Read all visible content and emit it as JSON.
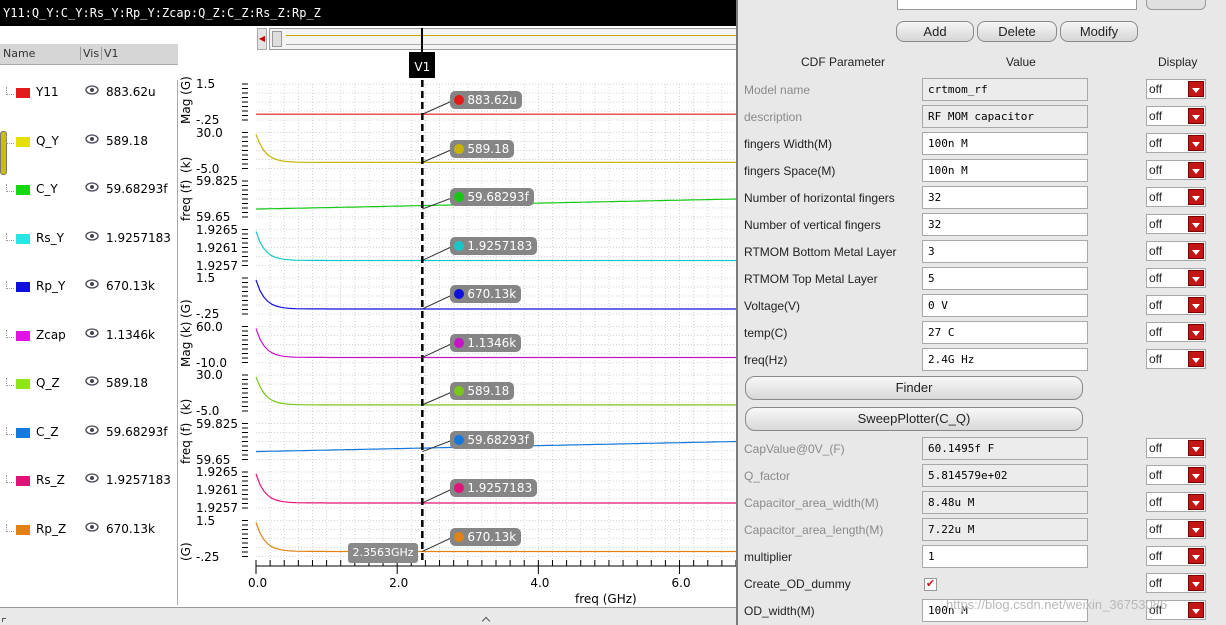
{
  "window": {
    "title": "Y11:Q_Y:C_Y:Rs_Y:Rp_Y:Zcap:Q_Z:C_Z:Rs_Z:Rp_Z"
  },
  "legend": {
    "headers": {
      "name": "Name",
      "vis": "Vis",
      "col": "V1"
    },
    "items": [
      {
        "name": "Y11",
        "value": "883.62u",
        "color": "#e41a1a"
      },
      {
        "name": "Q_Y",
        "value": "589.18",
        "color": "#e6e000"
      },
      {
        "name": "C_Y",
        "value": "59.68293f",
        "color": "#14d814"
      },
      {
        "name": "Rs_Y",
        "value": "1.9257183",
        "color": "#28e6e6"
      },
      {
        "name": "Rp_Y",
        "value": "670.13k",
        "color": "#1010dc"
      },
      {
        "name": "Zcap",
        "value": "1.1346k",
        "color": "#e014e0"
      },
      {
        "name": "Q_Z",
        "value": "589.18",
        "color": "#8ee61a"
      },
      {
        "name": "C_Z",
        "value": "59.68293f",
        "color": "#1478dc"
      },
      {
        "name": "Rs_Z",
        "value": "1.9257183",
        "color": "#e01478"
      },
      {
        "name": "Rp_Z",
        "value": "670.13k",
        "color": "#e08214"
      }
    ]
  },
  "chart_data": {
    "type": "line",
    "xlabel": "freq (GHz)",
    "x_ticks": [
      "0.0",
      "2.0",
      "4.0",
      "6.0"
    ],
    "xlim": [
      0,
      6.8
    ],
    "marker": {
      "name": "V1",
      "x": 2.3563,
      "x_readout": "2.3563GHz"
    },
    "strips": [
      {
        "name": "Y11",
        "ylabel": "Mag (G)",
        "ticks": [
          "1.5",
          "-.25"
        ],
        "readout": "883.62u",
        "color": "#e41a1a",
        "shape": "flat",
        "level": 0.84
      },
      {
        "name": "Q_Y",
        "ylabel": "(k)",
        "ticks": [
          "30.0",
          "-5.0"
        ],
        "readout": "589.18",
        "color": "#c8b400",
        "shape": "decay",
        "level": 0.83
      },
      {
        "name": "C_Y",
        "ylabel": "freq (f)",
        "ticks": [
          "59.825",
          "59.65"
        ],
        "readout": "59.68293f",
        "color": "#14c814",
        "shape": "rise",
        "level": 0.78
      },
      {
        "name": "Rs_Y",
        "ylabel": "",
        "ticks": [
          "1.9265",
          "1.9261",
          "1.9257"
        ],
        "readout": "1.9257183",
        "color": "#18c8c8",
        "shape": "decay",
        "level": 0.86
      },
      {
        "name": "Rp_Y",
        "ylabel": "(G)",
        "ticks": [
          "1.5",
          "-.25"
        ],
        "readout": "670.13k",
        "color": "#1010dc",
        "shape": "decay",
        "level": 0.86
      },
      {
        "name": "Zcap",
        "ylabel": "Mag (k)",
        "ticks": [
          "60.0",
          "-10.0"
        ],
        "readout": "1.1346k",
        "color": "#c814c8",
        "shape": "decay",
        "level": 0.86
      },
      {
        "name": "Q_Z",
        "ylabel": "(k)",
        "ticks": [
          "30.0",
          "-5.0"
        ],
        "readout": "589.18",
        "color": "#7ac81a",
        "shape": "decay",
        "level": 0.83
      },
      {
        "name": "C_Z",
        "ylabel": "freq (f)",
        "ticks": [
          "59.825",
          "59.65"
        ],
        "readout": "59.68293f",
        "color": "#1478dc",
        "shape": "rise",
        "level": 0.78
      },
      {
        "name": "Rs_Z",
        "ylabel": "",
        "ticks": [
          "1.9265",
          "1.9261",
          "1.9257"
        ],
        "readout": "1.9257183",
        "color": "#e01478",
        "shape": "decay",
        "level": 0.86
      },
      {
        "name": "Rp_Z",
        "ylabel": "(G)",
        "ticks": [
          "1.5",
          "-.25"
        ],
        "readout": "670.13k",
        "color": "#e08214",
        "shape": "decay",
        "level": 0.86
      }
    ]
  },
  "cdf": {
    "buttons": {
      "add": "Add",
      "delete": "Delete",
      "modify": "Modify",
      "finder": "Finder",
      "sweep": "SweepPlotter(C_Q)"
    },
    "headers": {
      "param": "CDF Parameter",
      "value": "Value",
      "display": "Display"
    },
    "rows": [
      {
        "label": "Model name",
        "value": "crtmom_rf",
        "display": "off",
        "disabled": true,
        "readonly": true
      },
      {
        "label": "description",
        "value": "RF MOM capacitor",
        "display": "off",
        "disabled": true,
        "readonly": true
      },
      {
        "label": "fingers Width(M)",
        "value": "100n M",
        "display": "off"
      },
      {
        "label": "fingers Space(M)",
        "value": "100n M",
        "display": "off"
      },
      {
        "label": "Number of horizontal fingers",
        "value": "32",
        "display": "off"
      },
      {
        "label": "Number of vertical fingers",
        "value": "32",
        "display": "off"
      },
      {
        "label": "RTMOM Bottom Metal Layer",
        "value": "3",
        "display": "off"
      },
      {
        "label": "RTMOM Top Metal Layer",
        "value": "5",
        "display": "off"
      },
      {
        "label": "Voltage(V)",
        "value": "0 V",
        "display": "off"
      },
      {
        "label": "temp(C)",
        "value": "27 C",
        "display": "off"
      },
      {
        "label": "freq(Hz)",
        "value": "2.4G Hz",
        "display": "off"
      }
    ],
    "rows2": [
      {
        "label": "CapValue@0V_(F)",
        "value": "60.1495f F",
        "display": "off",
        "disabled": true,
        "readonly": true
      },
      {
        "label": "Q_factor",
        "value": "5.814579e+02",
        "display": "off",
        "disabled": true,
        "readonly": true
      },
      {
        "label": "Capacitor_area_width(M)",
        "value": "8.48u M",
        "display": "off",
        "disabled": true,
        "readonly": true
      },
      {
        "label": "Capacitor_area_length(M)",
        "value": "7.22u M",
        "display": "off",
        "disabled": true,
        "readonly": true
      },
      {
        "label": "multiplier",
        "value": "1",
        "display": "off"
      },
      {
        "label": "Create_OD_dummy",
        "value": "",
        "display": "off",
        "checkbox": true,
        "check": "✔"
      },
      {
        "label": "OD_width(M)",
        "value": "100n M",
        "display": "off"
      }
    ]
  },
  "watermark": "https://blog.csdn.net/weixin_36753086"
}
